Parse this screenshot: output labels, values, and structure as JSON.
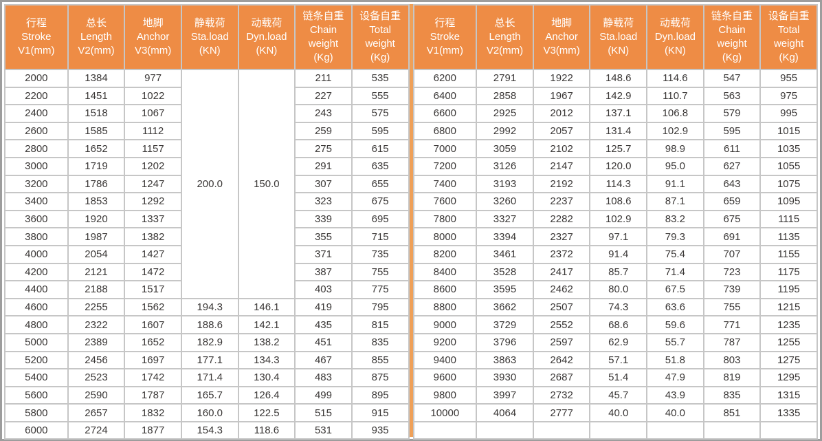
{
  "table": {
    "columns": [
      {
        "zh": "行程",
        "en": "Stroke",
        "unit": "V1(mm)"
      },
      {
        "zh": "总长",
        "en": "Length",
        "unit": "V2(mm)"
      },
      {
        "zh": "地脚",
        "en": "Anchor",
        "unit": "V3(mm)"
      },
      {
        "zh": "静载荷",
        "en": "Sta.load",
        "unit": "(KN)"
      },
      {
        "zh": "动载荷",
        "en": "Dyn.load",
        "unit": "(KN)"
      },
      {
        "zh": "链条自重",
        "en": "Chain weight",
        "unit": "(Kg)"
      },
      {
        "zh": "设备自重",
        "en": "Total weight",
        "unit": "(Kg)"
      }
    ],
    "left": {
      "merged": {
        "start_row": 0,
        "span": 13,
        "cols": {
          "3": "200.0",
          "4": "150.0"
        }
      },
      "rows": [
        [
          "2000",
          "1384",
          "977",
          null,
          null,
          "211",
          "535"
        ],
        [
          "2200",
          "1451",
          "1022",
          null,
          null,
          "227",
          "555"
        ],
        [
          "2400",
          "1518",
          "1067",
          null,
          null,
          "243",
          "575"
        ],
        [
          "2600",
          "1585",
          "1112",
          null,
          null,
          "259",
          "595"
        ],
        [
          "2800",
          "1652",
          "1157",
          null,
          null,
          "275",
          "615"
        ],
        [
          "3000",
          "1719",
          "1202",
          null,
          null,
          "291",
          "635"
        ],
        [
          "3200",
          "1786",
          "1247",
          null,
          null,
          "307",
          "655"
        ],
        [
          "3400",
          "1853",
          "1292",
          null,
          null,
          "323",
          "675"
        ],
        [
          "3600",
          "1920",
          "1337",
          null,
          null,
          "339",
          "695"
        ],
        [
          "3800",
          "1987",
          "1382",
          null,
          null,
          "355",
          "715"
        ],
        [
          "4000",
          "2054",
          "1427",
          null,
          null,
          "371",
          "735"
        ],
        [
          "4200",
          "2121",
          "1472",
          null,
          null,
          "387",
          "755"
        ],
        [
          "4400",
          "2188",
          "1517",
          null,
          null,
          "403",
          "775"
        ],
        [
          "4600",
          "2255",
          "1562",
          "194.3",
          "146.1",
          "419",
          "795"
        ],
        [
          "4800",
          "2322",
          "1607",
          "188.6",
          "142.1",
          "435",
          "815"
        ],
        [
          "5000",
          "2389",
          "1652",
          "182.9",
          "138.2",
          "451",
          "835"
        ],
        [
          "5200",
          "2456",
          "1697",
          "177.1",
          "134.3",
          "467",
          "855"
        ],
        [
          "5400",
          "2523",
          "1742",
          "171.4",
          "130.4",
          "483",
          "875"
        ],
        [
          "5600",
          "2590",
          "1787",
          "165.7",
          "126.4",
          "499",
          "895"
        ],
        [
          "5800",
          "2657",
          "1832",
          "160.0",
          "122.5",
          "515",
          "915"
        ],
        [
          "6000",
          "2724",
          "1877",
          "154.3",
          "118.6",
          "531",
          "935"
        ]
      ]
    },
    "right": {
      "merged": null,
      "rows": [
        [
          "6200",
          "2791",
          "1922",
          "148.6",
          "114.6",
          "547",
          "955"
        ],
        [
          "6400",
          "2858",
          "1967",
          "142.9",
          "110.7",
          "563",
          "975"
        ],
        [
          "6600",
          "2925",
          "2012",
          "137.1",
          "106.8",
          "579",
          "995"
        ],
        [
          "6800",
          "2992",
          "2057",
          "131.4",
          "102.9",
          "595",
          "1015"
        ],
        [
          "7000",
          "3059",
          "2102",
          "125.7",
          "98.9",
          "611",
          "1035"
        ],
        [
          "7200",
          "3126",
          "2147",
          "120.0",
          "95.0",
          "627",
          "1055"
        ],
        [
          "7400",
          "3193",
          "2192",
          "114.3",
          "91.1",
          "643",
          "1075"
        ],
        [
          "7600",
          "3260",
          "2237",
          "108.6",
          "87.1",
          "659",
          "1095"
        ],
        [
          "7800",
          "3327",
          "2282",
          "102.9",
          "83.2",
          "675",
          "1115"
        ],
        [
          "8000",
          "3394",
          "2327",
          "97.1",
          "79.3",
          "691",
          "1135"
        ],
        [
          "8200",
          "3461",
          "2372",
          "91.4",
          "75.4",
          "707",
          "1155"
        ],
        [
          "8400",
          "3528",
          "2417",
          "85.7",
          "71.4",
          "723",
          "1175"
        ],
        [
          "8600",
          "3595",
          "2462",
          "80.0",
          "67.5",
          "739",
          "1195"
        ],
        [
          "8800",
          "3662",
          "2507",
          "74.3",
          "63.6",
          "755",
          "1215"
        ],
        [
          "9000",
          "3729",
          "2552",
          "68.6",
          "59.6",
          "771",
          "1235"
        ],
        [
          "9200",
          "3796",
          "2597",
          "62.9",
          "55.7",
          "787",
          "1255"
        ],
        [
          "9400",
          "3863",
          "2642",
          "57.1",
          "51.8",
          "803",
          "1275"
        ],
        [
          "9600",
          "3930",
          "2687",
          "51.4",
          "47.9",
          "819",
          "1295"
        ],
        [
          "9800",
          "3997",
          "2732",
          "45.7",
          "43.9",
          "835",
          "1315"
        ],
        [
          "10000",
          "4064",
          "2777",
          "40.0",
          "40.0",
          "851",
          "1335"
        ],
        [
          "",
          "",
          "",
          "",
          "",
          "",
          ""
        ]
      ]
    }
  },
  "colors": {
    "header_background": "#ee8c45",
    "divider_stripe": "#efa058",
    "gridline": "#c6c6c6",
    "outer_border": "#9d9d9d",
    "header_text": "#ffffff",
    "body_text": "#3a3736"
  }
}
